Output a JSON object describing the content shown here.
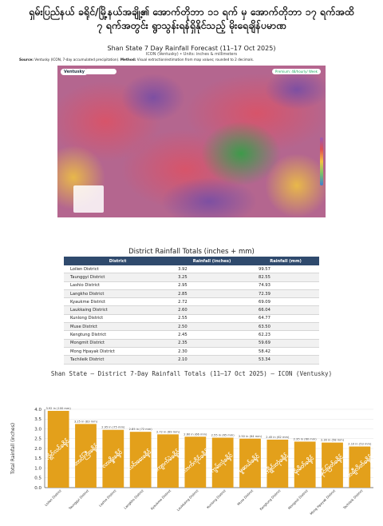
{
  "headline": {
    "line1": "ရှမ်းပြည်နယ် ခရိုင်/မြို့နယ်အချို့၏ အောက်တိုဘာ ၁၁ ရက် မှ အောက်တိုဘာ ၁၇ ရက်အထိ",
    "line2": "၇ ရက်အတွင်း ရွာသွန်းရန်ရှိနိုင်သည့် မိုးရေချိန်ပမာဏ"
  },
  "map_section": {
    "title": "Shan State 7 Day Rainfall Forecast (11–17 Oct 2025)",
    "subtitle": "ICON (Ventusky) • Units: inches & millimeters",
    "source_label": "Source:",
    "source_text": "Ventusky (ICON, 7-day accumulated precipitation).",
    "method_label": "Method:",
    "method_text": "Visual extraction/estimation from map values; rounded to 2 decimals.",
    "brand": "Ventusky",
    "premium_badge": "Premium: 48/hourly/ Week",
    "icon_names": [
      "ventusky-logo-icon",
      "search-icon",
      "layers-icon",
      "settings-icon"
    ]
  },
  "table": {
    "title": "District Rainfall Totals (inches + mm)",
    "headers": [
      "District",
      "Rainfall (inches)",
      "Rainfall (mm)"
    ],
    "rows": [
      [
        "Loilen District",
        "3.92",
        "99.57"
      ],
      [
        "Taunggyi District",
        "3.25",
        "82.55"
      ],
      [
        "Lashio District",
        "2.95",
        "74.93"
      ],
      [
        "Langkho District",
        "2.85",
        "72.39"
      ],
      [
        "Kyaukme District",
        "2.72",
        "69.09"
      ],
      [
        "Laukkaing District",
        "2.60",
        "66.04"
      ],
      [
        "Kunlong District",
        "2.55",
        "64.77"
      ],
      [
        "Muse District",
        "2.50",
        "63.50"
      ],
      [
        "Kengtung District",
        "2.45",
        "62.23"
      ],
      [
        "Mongmit District",
        "2.35",
        "59.69"
      ],
      [
        "Mong Hpayak District",
        "2.30",
        "58.42"
      ],
      [
        "Tachileik District",
        "2.10",
        "53.34"
      ]
    ],
    "caption": "Shan State — District 7-Day Rainfall Totals (11–17 Oct 2025) — ICON (Ventusky)"
  },
  "chart_data": {
    "type": "bar",
    "categories": [
      "Loilen District",
      "Taunggyi District",
      "Lashio District",
      "Langkho District",
      "Kyaukme District",
      "Laukkaing District",
      "Kunlong District",
      "Muse District",
      "Kengtung District",
      "Mongmit District",
      "Mong Hpayak District",
      "Tachileik District"
    ],
    "values": [
      3.92,
      3.25,
      2.95,
      2.85,
      2.72,
      2.6,
      2.55,
      2.5,
      2.45,
      2.35,
      2.3,
      2.1
    ],
    "data_labels": [
      "3.92 in (100 mm)",
      "3.25 in (83 mm)",
      "2.95 in (75 mm)",
      "2.85 in (72 mm)",
      "2.72 in (69 mm)",
      "2.60 in (66 mm)",
      "2.55 in (65 mm)",
      "2.50 in (64 mm)",
      "2.45 in (62 mm)",
      "2.35 in (60 mm)",
      "2.30 in (58 mm)",
      "2.10 in (53 mm)"
    ],
    "bar_text": [
      "လွိုင်လင်ခရိုင်",
      "တောင်ကြီးခရိုင်",
      "လားရှိုးခရိုင်",
      "လင်းခေးခရိုင်",
      "ကျောက်မဲခရိုင်",
      "လောက်ကိုင်ခရိုင်",
      "ကွမ်းလုံခရိုင်",
      "မူဆယ်ခရိုင်",
      "ကျိုင်းတုံခရိုင်",
      "မိုးမိတ်ခရိုင်",
      "မိုင်းဖြတ်ခရိုင်",
      "တာချီလိတ်ခရိုင်"
    ],
    "ylabel": "Total Rainfall (inches)",
    "xlabel": "",
    "ylim": [
      0,
      4.0
    ],
    "yticks": [
      "0.0",
      "0.5",
      "1.0",
      "1.5",
      "2.0",
      "2.5",
      "3.0",
      "3.5",
      "4.0"
    ],
    "grid": true,
    "bar_color": "#e3a01b"
  }
}
